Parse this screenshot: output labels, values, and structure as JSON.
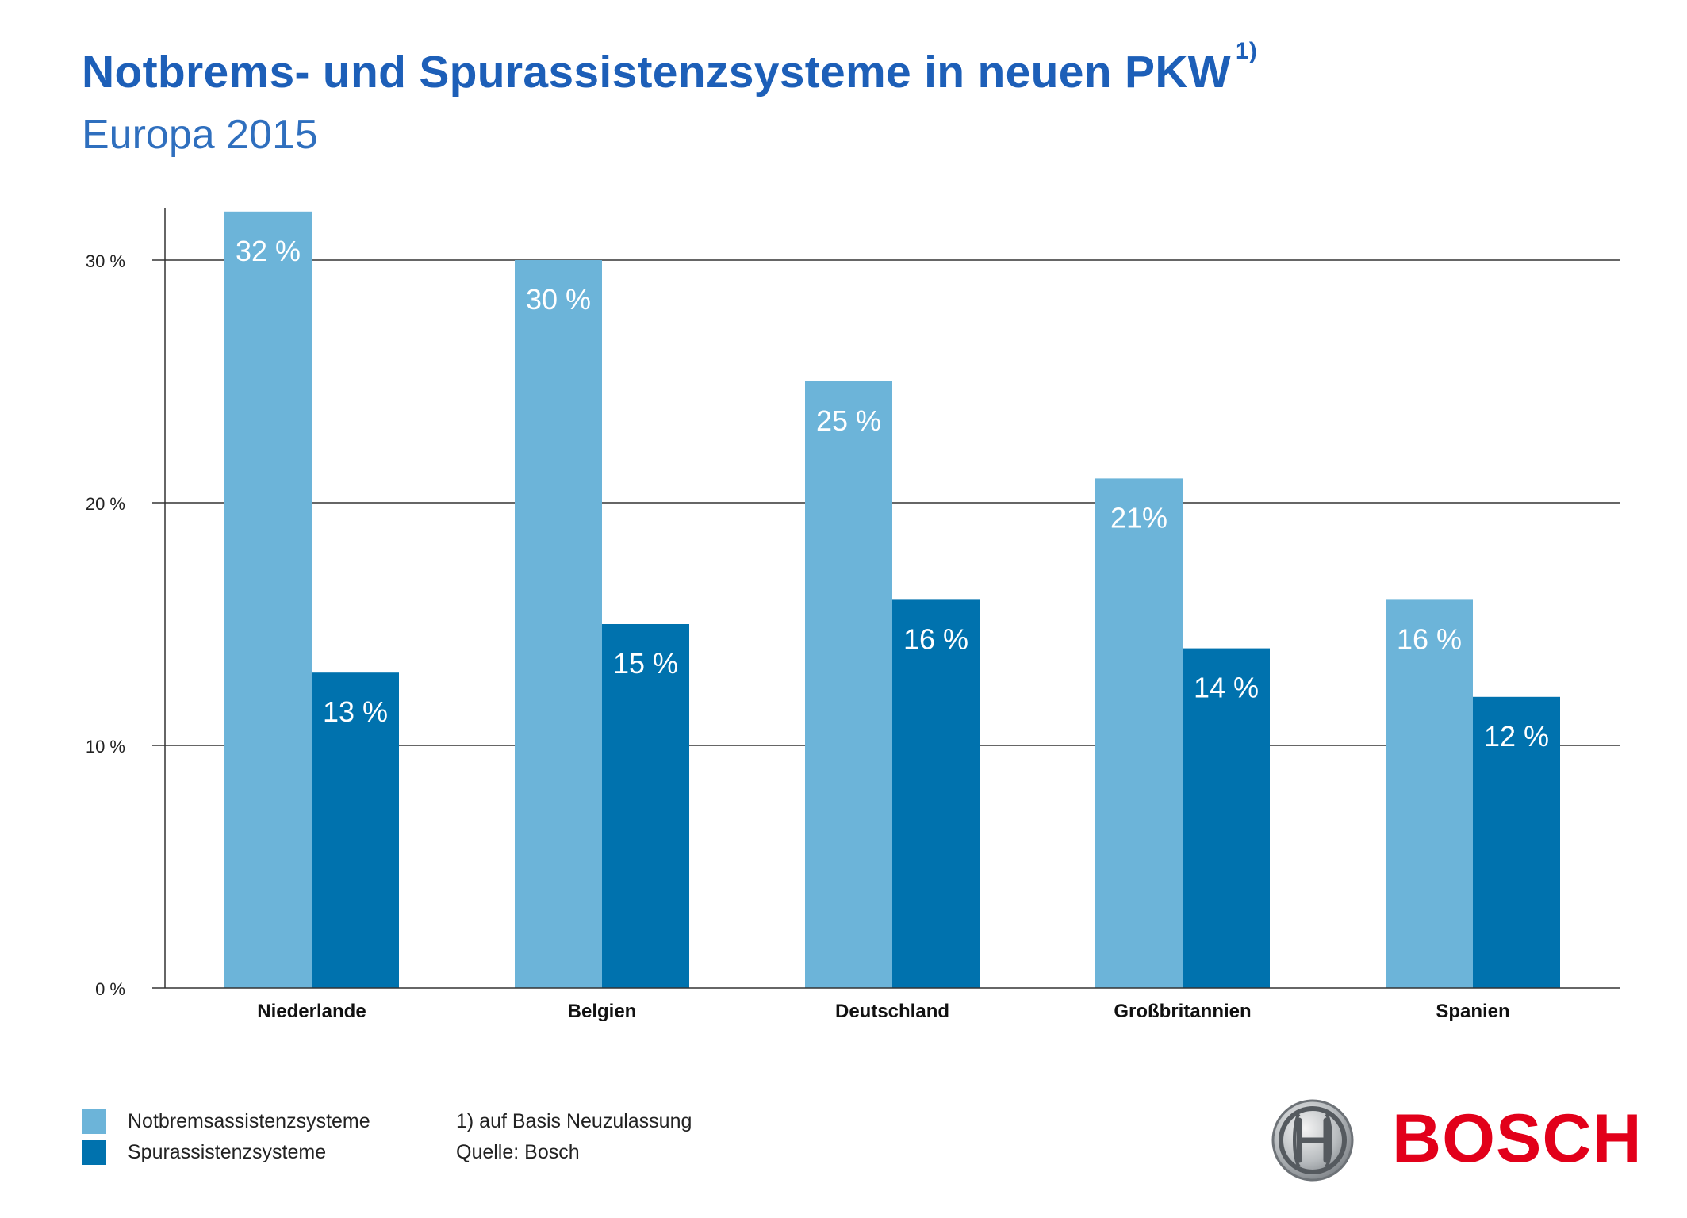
{
  "header": {
    "title": "Notbrems- und Spurassistenzsysteme in neuen PKW",
    "title_footnote": "1)",
    "subtitle": "Europa 2015"
  },
  "chart_data": {
    "type": "bar",
    "categories": [
      "Niederlande",
      "Belgien",
      "Deutschland",
      "Großbritannien",
      "Spanien"
    ],
    "series": [
      {
        "name": "Notbremsassistenzsysteme",
        "values": [
          32,
          30,
          25,
          21,
          16
        ],
        "labels": [
          "32 %",
          "30 %",
          "25 %",
          "21%",
          "16 %"
        ],
        "color": "#6cb4d9"
      },
      {
        "name": "Spurassistenzsysteme",
        "values": [
          13,
          15,
          16,
          14,
          12
        ],
        "labels": [
          "13 %",
          "15 %",
          "16 %",
          "14 %",
          "12 %"
        ],
        "color": "#0072ae"
      }
    ],
    "yticks": [
      {
        "value": 0,
        "label": "0 %"
      },
      {
        "value": 10,
        "label": "10 %"
      },
      {
        "value": 20,
        "label": "20 %"
      },
      {
        "value": 30,
        "label": "30 %"
      }
    ],
    "ylim": [
      0,
      32
    ],
    "grid": true,
    "legend_position": "bottom-left"
  },
  "legend": {
    "items": [
      {
        "label": "Notbremsassistenzsysteme",
        "color": "#6cb4d9"
      },
      {
        "label": "Spurassistenzsysteme",
        "color": "#0072ae"
      }
    ]
  },
  "notes": {
    "footnote": "1) auf Basis Neuzulassung",
    "source": "Quelle: Bosch"
  },
  "brand": {
    "name": "BOSCH",
    "logo_icon": "bosch-armature-icon",
    "color": "#e2001a"
  }
}
